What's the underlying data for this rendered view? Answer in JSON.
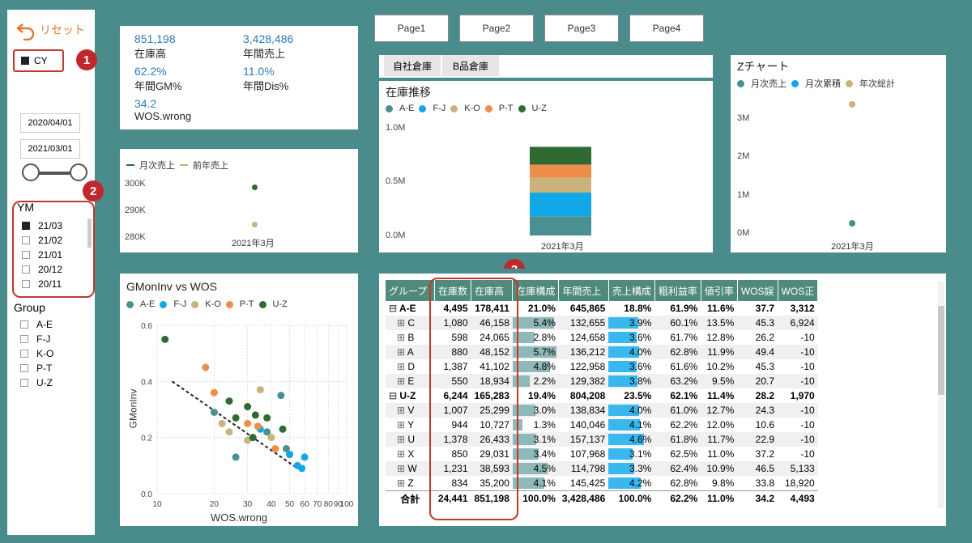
{
  "colors": {
    "ae": "#4a9090",
    "fj": "#12a8e8",
    "ko": "#c9b27c",
    "pt": "#ee8c4a",
    "uz": "#2f6a33",
    "teal": "#4a8c8c"
  },
  "sidebar": {
    "reset_label": "リセット",
    "cy_label": "CY",
    "date_from": "2020/04/01",
    "date_to": "2021/03/01",
    "ym_title": "YM",
    "ym_items": [
      "21/03",
      "21/02",
      "21/01",
      "20/12",
      "20/11"
    ],
    "group_title": "Group",
    "group_items": [
      "A-E",
      "F-J",
      "K-O",
      "P-T",
      "U-Z"
    ]
  },
  "badges": [
    "1",
    "2",
    "3"
  ],
  "pages": [
    "Page1",
    "Page2",
    "Page3",
    "Page4"
  ],
  "kpis": [
    {
      "value": "851,198",
      "label": "在庫高"
    },
    {
      "value": "3,428,486",
      "label": "年間売上"
    },
    {
      "value": "62.2%",
      "label": "年間GM%"
    },
    {
      "value": "11.0%",
      "label": "年間Dis%"
    },
    {
      "value": "34.2",
      "label": "WOS.wrong"
    }
  ],
  "small_chart": {
    "legend": [
      "月次売上",
      "前年売上"
    ],
    "yticks": [
      "300K",
      "290K",
      "280K"
    ],
    "xlabel": "2021年3月"
  },
  "warehouse_tabs": [
    "自社倉庫",
    "B品倉庫"
  ],
  "stock_chart": {
    "title": "在庫推移",
    "legend": [
      "A-E",
      "F-J",
      "K-O",
      "P-T",
      "U-Z"
    ],
    "yticks": [
      "1.0M",
      "0.5M",
      "0.0M"
    ],
    "xlabel": "2021年3月"
  },
  "z_chart": {
    "title": "Zチャート",
    "legend": [
      "月次売上",
      "月次累積",
      "年次総計"
    ],
    "yticks": [
      "3M",
      "2M",
      "1M",
      "0M"
    ],
    "xlabel": "2021年3月"
  },
  "scatter": {
    "title": "GMonInv vs WOS",
    "legend": [
      "A-E",
      "F-J",
      "K-O",
      "P-T",
      "U-Z"
    ],
    "ylabel": "GMonInv",
    "xlabel": "WOS.wrong",
    "yticks": [
      "0.6",
      "0.4",
      "0.2",
      "0.0"
    ],
    "xticks": [
      "10",
      "20",
      "30",
      "40",
      "50",
      "60",
      "70",
      "80",
      "90",
      "100"
    ]
  },
  "chart_data": [
    {
      "type": "line",
      "title": "",
      "series": [
        {
          "name": "月次売上",
          "values": [
            298000
          ]
        },
        {
          "name": "前年売上",
          "values": [
            284000
          ]
        }
      ],
      "categories": [
        "2021年3月"
      ],
      "ylim": [
        276000,
        304000
      ]
    },
    {
      "type": "bar",
      "title": "在庫推移",
      "categories": [
        "2021年3月"
      ],
      "series": [
        {
          "name": "A-E",
          "values": [
            178411
          ]
        },
        {
          "name": "F-J",
          "values": [
            220000
          ]
        },
        {
          "name": "K-O",
          "values": [
            140000
          ]
        },
        {
          "name": "P-T",
          "values": [
            120000
          ]
        },
        {
          "name": "U-Z",
          "values": [
            165283
          ]
        }
      ],
      "ylim": [
        0,
        1000000
      ]
    },
    {
      "type": "scatter",
      "title": "Zチャート",
      "categories": [
        "2021年3月"
      ],
      "series": [
        {
          "name": "月次売上",
          "values": [
            300000
          ]
        },
        {
          "name": "月次累積",
          "values": []
        },
        {
          "name": "年次総計",
          "values": [
            3428486
          ]
        }
      ],
      "ylim": [
        0,
        3600000
      ]
    },
    {
      "type": "scatter",
      "title": "GMonInv vs WOS",
      "xlabel": "WOS.wrong",
      "ylabel": "GMonInv",
      "ylim": [
        0,
        0.6
      ],
      "xlim": [
        10,
        100
      ],
      "series": [
        {
          "name": "A-E",
          "points": [
            [
              45,
              0.35
            ],
            [
              20,
              0.29
            ],
            [
              50,
              0.14
            ],
            [
              38,
              0.22
            ],
            [
              48,
              0.16
            ],
            [
              26,
              0.13
            ]
          ]
        },
        {
          "name": "F-J",
          "points": [
            [
              55,
              0.1
            ],
            [
              60,
              0.13
            ],
            [
              50,
              0.14
            ],
            [
              35,
              0.23
            ],
            [
              58,
              0.09
            ]
          ]
        },
        {
          "name": "K-O",
          "points": [
            [
              35,
              0.37
            ],
            [
              22,
              0.25
            ],
            [
              24,
              0.22
            ],
            [
              40,
              0.2
            ],
            [
              30,
              0.19
            ]
          ]
        },
        {
          "name": "P-T",
          "points": [
            [
              18,
              0.45
            ],
            [
              20,
              0.36
            ],
            [
              30,
              0.25
            ],
            [
              34,
              0.24
            ],
            [
              42,
              0.16
            ]
          ]
        },
        {
          "name": "U-Z",
          "points": [
            [
              11,
              0.55
            ],
            [
              24,
              0.33
            ],
            [
              26,
              0.27
            ],
            [
              33,
              0.28
            ],
            [
              38,
              0.27
            ],
            [
              30,
              0.31
            ],
            [
              46,
              0.23
            ],
            [
              32,
              0.2
            ]
          ]
        }
      ],
      "trendline": [
        [
          12,
          0.4
        ],
        [
          55,
          0.09
        ]
      ]
    }
  ],
  "matrix": {
    "headers": [
      "グループ",
      "在庫数",
      "在庫高",
      "在庫構成",
      "年間売上",
      "売上構成",
      "粗利益率",
      "値引率",
      "WOS誤",
      "WOS正"
    ],
    "rows": [
      {
        "g": true,
        "name": "A-E",
        "sym": "⊟",
        "c": [
          "4,495",
          "178,411",
          "21.0%",
          "645,865",
          "18.8%",
          "61.9%",
          "11.6%",
          "37.7",
          "3,312"
        ],
        "b1": 0,
        "b2": 0
      },
      {
        "name": "C",
        "sym": "⊞",
        "c": [
          "1,080",
          "46,158",
          "5.4%",
          "132,655",
          "3.9%",
          "60.1%",
          "13.5%",
          "45.3",
          "6,924"
        ],
        "b1": 5.4,
        "b2": 3.9
      },
      {
        "name": "B",
        "sym": "⊞",
        "c": [
          "598",
          "24,065",
          "2.8%",
          "124,658",
          "3.6%",
          "61.7%",
          "12.8%",
          "26.2",
          "-10"
        ],
        "b1": 2.8,
        "b2": 3.6
      },
      {
        "name": "A",
        "sym": "⊞",
        "c": [
          "880",
          "48,152",
          "5.7%",
          "136,212",
          "4.0%",
          "62.8%",
          "11.9%",
          "49.4",
          "-10"
        ],
        "b1": 5.7,
        "b2": 4.0
      },
      {
        "name": "D",
        "sym": "⊞",
        "c": [
          "1,387",
          "41,102",
          "4.8%",
          "122,958",
          "3.6%",
          "61.6%",
          "10.2%",
          "45.3",
          "-10"
        ],
        "b1": 4.8,
        "b2": 3.6
      },
      {
        "name": "E",
        "sym": "⊞",
        "c": [
          "550",
          "18,934",
          "2.2%",
          "129,382",
          "3.8%",
          "63.2%",
          "9.5%",
          "20.7",
          "-10"
        ],
        "b1": 2.2,
        "b2": 3.8
      },
      {
        "g": true,
        "name": "U-Z",
        "sym": "⊟",
        "c": [
          "6,244",
          "165,283",
          "19.4%",
          "804,208",
          "23.5%",
          "62.1%",
          "11.4%",
          "28.2",
          "1,970"
        ],
        "b1": 0,
        "b2": 0
      },
      {
        "name": "V",
        "sym": "⊞",
        "c": [
          "1,007",
          "25,299",
          "3.0%",
          "138,834",
          "4.0%",
          "61.0%",
          "12.7%",
          "24.3",
          "-10"
        ],
        "b1": 3.0,
        "b2": 4.0
      },
      {
        "name": "Y",
        "sym": "⊞",
        "c": [
          "944",
          "10,727",
          "1.3%",
          "140,046",
          "4.1%",
          "62.2%",
          "12.0%",
          "10.6",
          "-10"
        ],
        "b1": 1.3,
        "b2": 4.1
      },
      {
        "name": "U",
        "sym": "⊞",
        "c": [
          "1,378",
          "26,433",
          "3.1%",
          "157,137",
          "4.6%",
          "61.8%",
          "11.7%",
          "22.9",
          "-10"
        ],
        "b1": 3.1,
        "b2": 4.6
      },
      {
        "name": "X",
        "sym": "⊞",
        "c": [
          "850",
          "29,031",
          "3.4%",
          "107,968",
          "3.1%",
          "62.5%",
          "11.0%",
          "37.2",
          "-10"
        ],
        "b1": 3.4,
        "b2": 3.1
      },
      {
        "name": "W",
        "sym": "⊞",
        "c": [
          "1,231",
          "38,593",
          "4.5%",
          "114,798",
          "3.3%",
          "62.4%",
          "10.9%",
          "46.5",
          "5,133"
        ],
        "b1": 4.5,
        "b2": 3.3
      },
      {
        "name": "Z",
        "sym": "⊞",
        "c": [
          "834",
          "35,200",
          "4.1%",
          "145,425",
          "4.2%",
          "62.8%",
          "9.8%",
          "33.8",
          "18,920"
        ],
        "b1": 4.1,
        "b2": 4.2
      }
    ],
    "total": {
      "name": "合計",
      "c": [
        "24,441",
        "851,198",
        "100.0%",
        "3,428,486",
        "100.0%",
        "62.2%",
        "11.0%",
        "34.2",
        "4,493"
      ]
    }
  }
}
